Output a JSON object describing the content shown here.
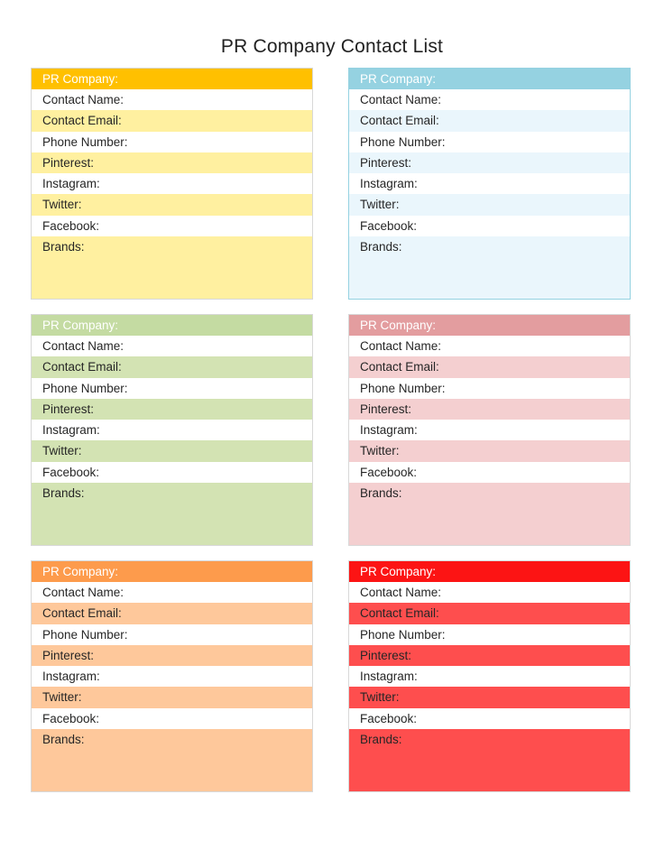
{
  "page": {
    "title": "PR Company Contact List"
  },
  "card_labels": {
    "header": "PR Company:",
    "contact_name": "Contact Name:",
    "contact_email": "Contact Email:",
    "phone_number": "Phone Number:",
    "pinterest": "Pinterest:",
    "instagram": "Instagram:",
    "twitter": "Twitter:",
    "facebook": "Facebook:",
    "brands": "Brands:"
  },
  "cards": [
    {
      "id": "yellow",
      "header_color": "#ffc000",
      "band_color": "#fff0a0",
      "brands_color": "#fff0a0",
      "border_color": "#d8d8d8"
    },
    {
      "id": "blue",
      "header_color": "#95d2e1",
      "band_color": "#eaf6fc",
      "brands_color": "#eaf6fc",
      "border_color": "#95d2e1"
    },
    {
      "id": "green",
      "header_color": "#c4dba2",
      "band_color": "#d3e3b3",
      "brands_color": "#d3e3b3",
      "border_color": "#d8d8d8"
    },
    {
      "id": "pink",
      "header_color": "#e39d9f",
      "band_color": "#f4cfd0",
      "brands_color": "#f4cfd0",
      "border_color": "#d8d8d8"
    },
    {
      "id": "orange",
      "header_color": "#fd9b4c",
      "band_color": "#fec89b",
      "brands_color": "#fec89b",
      "border_color": "#d8d8d8"
    },
    {
      "id": "red",
      "header_color": "#fc1414",
      "band_color": "#fe4e4e",
      "brands_color": "#fe4e4e",
      "border_color": "#d8d8d8"
    }
  ]
}
